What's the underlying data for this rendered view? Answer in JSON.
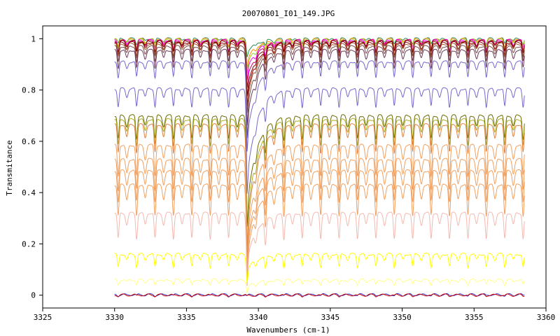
{
  "chart_data": {
    "type": "line",
    "title": "20070801_I01_149.JPG",
    "xlabel": "Wavenumbers (cm-1)",
    "ylabel": "Transmitance",
    "xlim": [
      3325,
      3360
    ],
    "ylim": [
      -0.05,
      1.05
    ],
    "xticks": [
      3325,
      3330,
      3335,
      3340,
      3345,
      3350,
      3355,
      3360
    ],
    "yticks": [
      0,
      0.2,
      0.4,
      0.6,
      0.8,
      1
    ],
    "ytick_labels": [
      "0",
      "0.2",
      "0.4",
      "0.6",
      "0.8",
      "1"
    ],
    "grid": false,
    "x_range": [
      3330,
      3358.5
    ],
    "strong_line_at": 3339.2,
    "line_spacing": 1.28,
    "series": [
      {
        "color": "#2e8b57",
        "base": 1.0,
        "depth": 0.02,
        "dip": 0.05
      },
      {
        "color": "#ff8c00",
        "base": 0.998,
        "depth": 0.03,
        "dip": 0.08
      },
      {
        "color": "#9acd32",
        "base": 0.996,
        "depth": 0.03,
        "dip": 0.1
      },
      {
        "color": "#ff00ff",
        "base": 0.994,
        "depth": 0.04,
        "dip": 0.12
      },
      {
        "color": "#cc0066",
        "base": 0.992,
        "depth": 0.04,
        "dip": 0.15
      },
      {
        "color": "#800000",
        "base": 0.99,
        "depth": 0.04,
        "dip": 0.18
      },
      {
        "color": "#8b0000",
        "base": 0.985,
        "depth": 0.05,
        "dip": 0.2
      },
      {
        "color": "#a0522d",
        "base": 0.98,
        "depth": 0.05,
        "dip": 0.22
      },
      {
        "color": "#7a4a4a",
        "base": 0.97,
        "depth": 0.06,
        "dip": 0.25
      },
      {
        "color": "#6b3a5a",
        "base": 0.955,
        "depth": 0.07,
        "dip": 0.28
      },
      {
        "color": "#7766cc",
        "base": 0.91,
        "depth": 0.06,
        "dip": 0.3
      },
      {
        "color": "#7766cc",
        "base": 0.805,
        "depth": 0.07,
        "dip": 0.35
      },
      {
        "color": "#6b6b00",
        "base": 0.7,
        "depth": 0.09,
        "dip": 0.35
      },
      {
        "color": "#aaaa22",
        "base": 0.685,
        "depth": 0.1,
        "dip": 0.4
      },
      {
        "color": "#e08040",
        "base": 0.665,
        "depth": 0.11,
        "dip": 0.42
      },
      {
        "color": "#f0a060",
        "base": 0.585,
        "depth": 0.12,
        "dip": 0.38
      },
      {
        "color": "#f0a060",
        "base": 0.53,
        "depth": 0.12,
        "dip": 0.36
      },
      {
        "color": "#f0a060",
        "base": 0.485,
        "depth": 0.12,
        "dip": 0.32
      },
      {
        "color": "#f0a060",
        "base": 0.43,
        "depth": 0.12,
        "dip": 0.28
      },
      {
        "color": "#f4b8b0",
        "base": 0.32,
        "depth": 0.1,
        "dip": 0.18
      },
      {
        "color": "#ffff00",
        "base": 0.16,
        "depth": 0.05,
        "dip": 0.06
      },
      {
        "color": "#ffff88",
        "base": 0.06,
        "depth": 0.02,
        "dip": 0.03
      },
      {
        "color": "#3333cc",
        "base": 0.002,
        "depth": 0.004,
        "dip": 0.002
      },
      {
        "color": "#cc0000",
        "base": 0.001,
        "depth": 0.004,
        "dip": 0.002
      }
    ]
  }
}
